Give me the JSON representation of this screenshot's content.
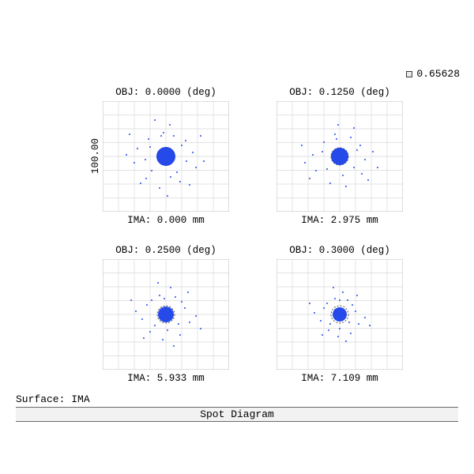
{
  "legend": {
    "value": "0.65628",
    "swatch_border": "#3a3a3a",
    "swatch_fill": "#e9e9e9"
  },
  "axis": {
    "label": "100.00",
    "fontsize": 12.5
  },
  "footer": {
    "surface": "Surface: IMA",
    "title": "Spot Diagram"
  },
  "style": {
    "background": "#ffffff",
    "grid_line_color": "#d9d9d9",
    "grid_border_color": "#bcbcbc",
    "airy_ring_color": "#303030",
    "spot_color": "#1940e8",
    "spot_color_light": "#4a6af0",
    "font_family": "Courier New",
    "label_fontsize": 12.5
  },
  "panels": [
    {
      "obj": "OBJ: 0.0000 (deg)",
      "ima": "IMA: 0.000 mm",
      "grid_divisions": 8,
      "airy_radius": 11,
      "core_radius": 12,
      "scatter": [
        {
          "x": 0,
          "y": 0,
          "r": 12,
          "core": true
        },
        {
          "x": -3,
          "y": -30
        },
        {
          "x": 10,
          "y": -26
        },
        {
          "x": -22,
          "y": -22
        },
        {
          "x": 25,
          "y": -20
        },
        {
          "x": -36,
          "y": -10
        },
        {
          "x": 34,
          "y": -5
        },
        {
          "x": -40,
          "y": 8
        },
        {
          "x": 38,
          "y": 14
        },
        {
          "x": -25,
          "y": 28
        },
        {
          "x": 18,
          "y": 32
        },
        {
          "x": -8,
          "y": 40
        },
        {
          "x": 5,
          "y": -40
        },
        {
          "x": -50,
          "y": -2
        },
        {
          "x": 48,
          "y": 6
        },
        {
          "x": -14,
          "y": -46
        },
        {
          "x": 30,
          "y": 36
        },
        {
          "x": -32,
          "y": 34
        },
        {
          "x": 44,
          "y": -26
        },
        {
          "x": -46,
          "y": -28
        },
        {
          "x": 2,
          "y": 50
        },
        {
          "x": -18,
          "y": 18
        },
        {
          "x": 20,
          "y": -14
        },
        {
          "x": 14,
          "y": 20
        },
        {
          "x": -20,
          "y": -12
        },
        {
          "x": 26,
          "y": 6
        },
        {
          "x": -26,
          "y": 4
        },
        {
          "x": 6,
          "y": 26
        },
        {
          "x": -6,
          "y": -26
        }
      ]
    },
    {
      "obj": "OBJ: 0.1250 (deg)",
      "ima": "IMA: 2.975 mm",
      "grid_divisions": 8,
      "airy_radius": 11,
      "core_radius": 11,
      "scatter": [
        {
          "x": 0,
          "y": 0,
          "r": 11,
          "core": true
        },
        {
          "x": -6,
          "y": -28
        },
        {
          "x": 14,
          "y": -24
        },
        {
          "x": -20,
          "y": -18
        },
        {
          "x": 26,
          "y": -14
        },
        {
          "x": -34,
          "y": -2
        },
        {
          "x": 32,
          "y": 4
        },
        {
          "x": -30,
          "y": 18
        },
        {
          "x": 28,
          "y": 22
        },
        {
          "x": -12,
          "y": 34
        },
        {
          "x": 8,
          "y": 38
        },
        {
          "x": -2,
          "y": -40
        },
        {
          "x": 18,
          "y": -36
        },
        {
          "x": -44,
          "y": 8
        },
        {
          "x": 42,
          "y": -6
        },
        {
          "x": 36,
          "y": 30
        },
        {
          "x": -38,
          "y": 28
        },
        {
          "x": -16,
          "y": 16
        },
        {
          "x": 18,
          "y": 14
        },
        {
          "x": -22,
          "y": -6
        },
        {
          "x": 22,
          "y": -8
        },
        {
          "x": 4,
          "y": 24
        },
        {
          "x": -4,
          "y": -22
        },
        {
          "x": 48,
          "y": 14
        },
        {
          "x": -48,
          "y": -14
        }
      ]
    },
    {
      "obj": "OBJ: 0.2500 (deg)",
      "ima": "IMA: 5.933 mm",
      "grid_divisions": 8,
      "airy_radius": 11,
      "core_radius": 10,
      "scatter": [
        {
          "x": 0,
          "y": 0,
          "r": 10,
          "core": true
        },
        {
          "x": -8,
          "y": -24
        },
        {
          "x": 12,
          "y": -22
        },
        {
          "x": -24,
          "y": -12
        },
        {
          "x": 24,
          "y": -8
        },
        {
          "x": -30,
          "y": 6
        },
        {
          "x": 30,
          "y": 10
        },
        {
          "x": -20,
          "y": 22
        },
        {
          "x": 18,
          "y": 26
        },
        {
          "x": -4,
          "y": 32
        },
        {
          "x": 6,
          "y": -34
        },
        {
          "x": -38,
          "y": -4
        },
        {
          "x": 38,
          "y": 2
        },
        {
          "x": -14,
          "y": 14
        },
        {
          "x": 16,
          "y": 12
        },
        {
          "x": -18,
          "y": -18
        },
        {
          "x": 20,
          "y": -16
        },
        {
          "x": 2,
          "y": 20
        },
        {
          "x": -2,
          "y": -20
        },
        {
          "x": 44,
          "y": 18
        },
        {
          "x": -44,
          "y": -18
        },
        {
          "x": 28,
          "y": -28
        },
        {
          "x": -28,
          "y": 30
        },
        {
          "x": 10,
          "y": 40
        },
        {
          "x": -10,
          "y": -40
        }
      ]
    },
    {
      "obj": "OBJ: 0.3000 (deg)",
      "ima": "IMA: 7.109 mm",
      "grid_divisions": 8,
      "airy_radius": 11,
      "core_radius": 9,
      "scatter": [
        {
          "x": 0,
          "y": 0,
          "r": 9,
          "core": true
        },
        {
          "x": -6,
          "y": -20
        },
        {
          "x": 10,
          "y": -18
        },
        {
          "x": -20,
          "y": -8
        },
        {
          "x": 20,
          "y": -4
        },
        {
          "x": -24,
          "y": 8
        },
        {
          "x": 24,
          "y": 12
        },
        {
          "x": -14,
          "y": 20
        },
        {
          "x": 14,
          "y": 24
        },
        {
          "x": -2,
          "y": 28
        },
        {
          "x": 4,
          "y": -28
        },
        {
          "x": -32,
          "y": -2
        },
        {
          "x": 32,
          "y": 4
        },
        {
          "x": -12,
          "y": 12
        },
        {
          "x": 12,
          "y": 10
        },
        {
          "x": -16,
          "y": -14
        },
        {
          "x": 16,
          "y": -12
        },
        {
          "x": 0,
          "y": 18
        },
        {
          "x": 0,
          "y": -18
        },
        {
          "x": 38,
          "y": 14
        },
        {
          "x": -38,
          "y": -14
        },
        {
          "x": 22,
          "y": -24
        },
        {
          "x": -22,
          "y": 26
        },
        {
          "x": 8,
          "y": 34
        },
        {
          "x": -8,
          "y": -34
        }
      ]
    }
  ]
}
